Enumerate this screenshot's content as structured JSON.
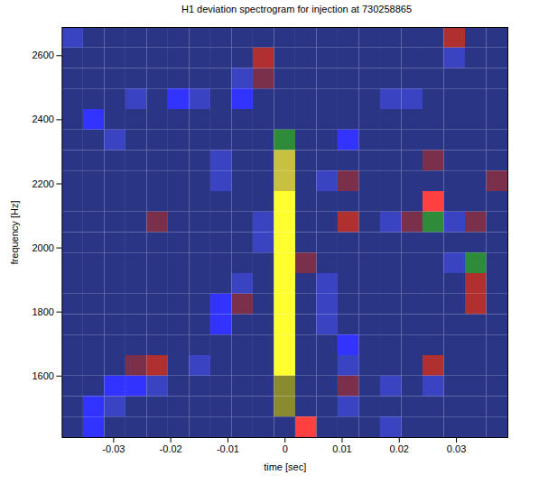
{
  "chart_data": {
    "type": "heatmap",
    "title": "H1 deviation spectrogram for injection at 730258865",
    "x_label": "time [sec]",
    "y_label": "frequency [Hz]",
    "xlim": [
      -0.039,
      0.039
    ],
    "ylim": [
      1408,
      2688
    ],
    "xticks": [
      -0.03,
      -0.02,
      -0.01,
      0,
      0.01,
      0.02,
      0.03
    ],
    "yticks": [
      1600,
      1800,
      2000,
      2200,
      2400,
      2600
    ],
    "colors": [
      "#2b3585",
      "#3a44c2",
      "#3333ff",
      "#7a2f4a",
      "#b03030",
      "#ff4040",
      "#2e8b3a",
      "#8a8a30",
      "#c8c040",
      "#ffff30"
    ],
    "cells": [
      [
        1,
        0,
        0,
        0,
        0,
        0,
        0,
        0,
        0,
        0,
        0,
        0,
        0,
        0,
        0,
        0,
        0,
        0,
        4,
        0,
        0
      ],
      [
        0,
        0,
        0,
        0,
        0,
        0,
        0,
        0,
        0,
        4,
        0,
        0,
        0,
        0,
        0,
        0,
        0,
        0,
        1,
        0,
        0
      ],
      [
        0,
        0,
        0,
        0,
        0,
        0,
        0,
        0,
        1,
        3,
        0,
        0,
        0,
        0,
        0,
        0,
        0,
        0,
        0,
        0,
        0
      ],
      [
        0,
        0,
        0,
        1,
        0,
        2,
        1,
        0,
        2,
        0,
        0,
        0,
        0,
        0,
        0,
        1,
        1,
        0,
        0,
        0,
        0
      ],
      [
        0,
        2,
        0,
        0,
        0,
        0,
        0,
        0,
        0,
        0,
        0,
        0,
        0,
        0,
        0,
        0,
        0,
        0,
        0,
        0,
        0
      ],
      [
        0,
        0,
        1,
        0,
        0,
        0,
        0,
        0,
        0,
        0,
        6,
        0,
        0,
        2,
        0,
        0,
        0,
        0,
        0,
        0,
        0
      ],
      [
        0,
        0,
        0,
        0,
        0,
        0,
        0,
        1,
        0,
        0,
        8,
        0,
        0,
        0,
        0,
        0,
        0,
        3,
        0,
        0,
        0
      ],
      [
        0,
        0,
        0,
        0,
        0,
        0,
        0,
        1,
        0,
        0,
        8,
        0,
        1,
        3,
        0,
        0,
        0,
        0,
        0,
        0,
        3
      ],
      [
        0,
        0,
        0,
        0,
        0,
        0,
        0,
        0,
        0,
        0,
        9,
        0,
        0,
        0,
        0,
        0,
        0,
        5,
        0,
        0,
        0
      ],
      [
        0,
        0,
        0,
        0,
        3,
        0,
        0,
        0,
        0,
        1,
        9,
        0,
        0,
        4,
        0,
        1,
        3,
        6,
        1,
        3,
        0
      ],
      [
        0,
        0,
        0,
        0,
        0,
        0,
        0,
        0,
        0,
        1,
        9,
        0,
        0,
        0,
        0,
        0,
        0,
        0,
        0,
        0,
        0
      ],
      [
        0,
        0,
        0,
        0,
        0,
        0,
        0,
        0,
        0,
        0,
        9,
        3,
        0,
        0,
        0,
        0,
        0,
        0,
        1,
        6,
        0
      ],
      [
        0,
        0,
        0,
        0,
        0,
        0,
        0,
        0,
        1,
        0,
        9,
        0,
        1,
        0,
        0,
        0,
        0,
        0,
        0,
        4,
        0
      ],
      [
        0,
        0,
        0,
        0,
        0,
        0,
        0,
        2,
        3,
        0,
        9,
        0,
        1,
        0,
        0,
        0,
        0,
        0,
        0,
        4,
        0
      ],
      [
        0,
        0,
        0,
        0,
        0,
        0,
        0,
        2,
        0,
        0,
        9,
        0,
        1,
        0,
        0,
        0,
        0,
        0,
        0,
        0,
        0
      ],
      [
        0,
        0,
        0,
        0,
        0,
        0,
        0,
        0,
        0,
        0,
        9,
        0,
        0,
        2,
        0,
        0,
        0,
        0,
        0,
        0,
        0
      ],
      [
        0,
        0,
        0,
        3,
        4,
        0,
        1,
        0,
        0,
        0,
        9,
        0,
        0,
        1,
        0,
        0,
        0,
        4,
        0,
        0,
        0
      ],
      [
        0,
        0,
        2,
        2,
        1,
        0,
        0,
        0,
        0,
        0,
        7,
        0,
        0,
        3,
        0,
        1,
        0,
        1,
        0,
        0,
        0
      ],
      [
        0,
        2,
        1,
        0,
        0,
        0,
        0,
        0,
        0,
        0,
        7,
        0,
        0,
        1,
        0,
        0,
        0,
        0,
        0,
        0,
        0
      ],
      [
        0,
        2,
        0,
        0,
        0,
        0,
        0,
        0,
        0,
        0,
        0,
        5,
        0,
        0,
        0,
        1,
        0,
        0,
        0,
        0,
        0
      ]
    ]
  }
}
